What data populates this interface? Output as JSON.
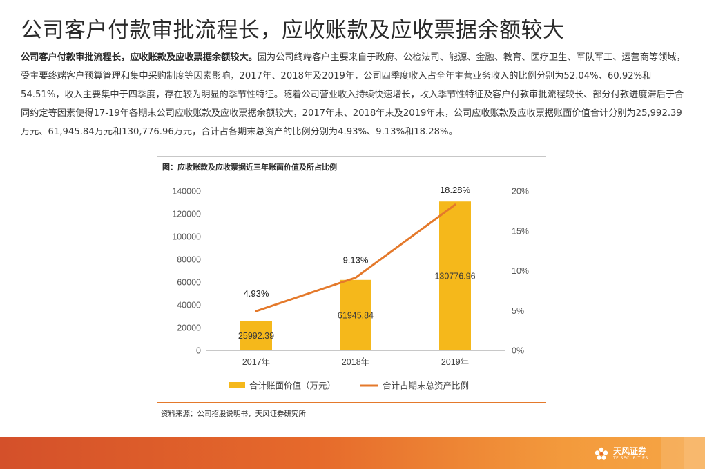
{
  "page": {
    "title": "公司客户付款审批流程长，应收账款及应收票据余额较大",
    "lead_bold": "公司客户付款审批流程长，应收账款及应收票据余额较大。",
    "paragraph": "因为公司终端客户主要来自于政府、公检法司、能源、金融、教育、医疗卫生、军队军工、运营商等领域，受主要终端客户预算管理和集中采购制度等因素影响，2017年、2018年及2019年，公司四季度收入占全年主营业务收入的比例分别为52.04%、60.92%和54.51%，收入主要集中于四季度，存在较为明显的季节性特征。随着公司营业收入持续快速增长，收入季节性特征及客户付款审批流程较长、部分付款进度滞后于合同约定等因素使得17-19年各期末公司应收账款及应收票据余额较大，2017年末、2018年末及2019年末，公司应收账款及应收票据账面价值合计分别为25,992.39万元、61,945.84万元和130,776.96万元，合计占各期末总资产的比例分别为4.93%、9.13%和18.28%。",
    "chart_caption": "图：应收账款及应收票据近三年账面价值及所占比例",
    "source": "资料来源：公司招股说明书，天风证券研究所",
    "logo_cn": "天风证券",
    "logo_en": "TF SECURITIES"
  },
  "chart_data": {
    "type": "bar",
    "title": "图：应收账款及应收票据近三年账面价值及所占比例",
    "categories": [
      "2017年",
      "2018年",
      "2019年"
    ],
    "series": [
      {
        "name": "合计账面价值（万元）",
        "type": "bar",
        "axis": "left",
        "values": [
          25992.39,
          61945.84,
          130776.96
        ],
        "labels": [
          "25992.39",
          "61945.84",
          "130776.96"
        ],
        "color": "#f5b81b"
      },
      {
        "name": "合计占期末总资产比例",
        "type": "line",
        "axis": "right",
        "values": [
          4.93,
          9.13,
          18.28
        ],
        "labels": [
          "4.93%",
          "9.13%",
          "18.28%"
        ],
        "color": "#e4792b"
      }
    ],
    "y_left": {
      "ylim": [
        0,
        140000
      ],
      "ticks": [
        0,
        20000,
        40000,
        60000,
        80000,
        100000,
        120000,
        140000
      ],
      "tick_labels": [
        "0",
        "20000",
        "40000",
        "60000",
        "80000",
        "100000",
        "120000",
        "140000"
      ]
    },
    "y_right": {
      "ylim": [
        0,
        20
      ],
      "ticks": [
        0,
        5,
        10,
        15,
        20
      ],
      "tick_labels": [
        "0%",
        "5%",
        "10%",
        "15%",
        "20%"
      ]
    },
    "grid": false,
    "legend": "bottom"
  },
  "colors": {
    "accent": "#e4792b",
    "bar": "#f5b81b",
    "footer": "#e66a2b"
  }
}
